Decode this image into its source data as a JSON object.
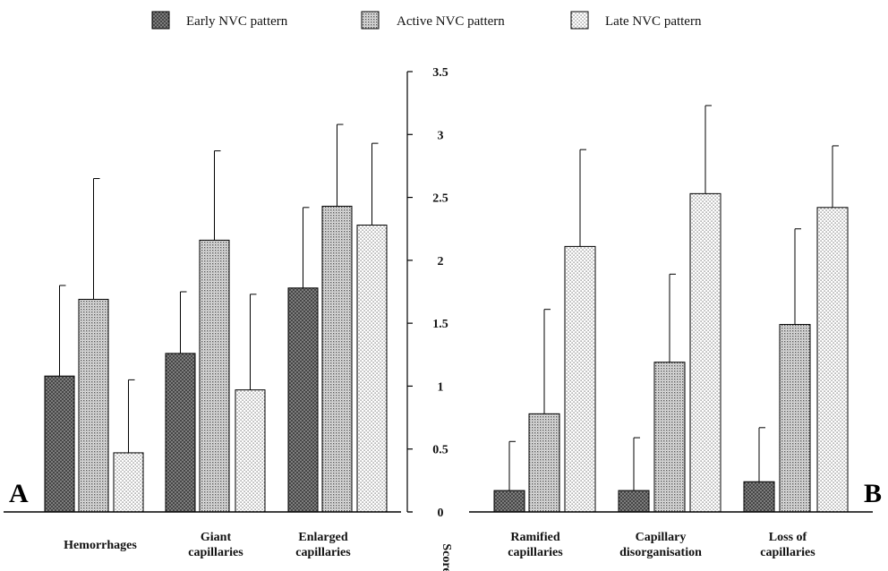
{
  "chart_data": {
    "type": "bar",
    "ylabel": "Score",
    "ylim": [
      0,
      3.5
    ],
    "y_ticks": [
      "0",
      "0.5",
      "1",
      "1.5",
      "2",
      "2.5",
      "3",
      "3.5"
    ],
    "legend": {
      "placement": "top",
      "entries": [
        {
          "name": "Early NVC pattern",
          "pattern": "crosshatch"
        },
        {
          "name": "Active NVC pattern",
          "pattern": "fine-dots"
        },
        {
          "name": "Late NVC pattern",
          "pattern": "sparse-dots"
        }
      ]
    },
    "panels": [
      {
        "label": "A",
        "categories": [
          [
            "Hemorrhages"
          ],
          [
            "Giant",
            "capillaries"
          ],
          [
            "Enlarged",
            "capillaries"
          ]
        ],
        "series": [
          {
            "name": "Early NVC pattern",
            "values": [
              1.08,
              1.26,
              1.78
            ],
            "errors": [
              0.72,
              0.49,
              0.64
            ]
          },
          {
            "name": "Active NVC pattern",
            "values": [
              1.69,
              2.16,
              2.43
            ],
            "errors": [
              0.96,
              0.71,
              0.65
            ]
          },
          {
            "name": "Late NVC pattern",
            "values": [
              0.47,
              0.97,
              2.28
            ],
            "errors": [
              0.58,
              0.76,
              0.65
            ]
          }
        ]
      },
      {
        "label": "B",
        "categories": [
          [
            "Ramified",
            "capillaries"
          ],
          [
            "Capillary",
            "disorganisation"
          ],
          [
            "Loss of",
            "capillaries"
          ]
        ],
        "series": [
          {
            "name": "Early NVC pattern",
            "values": [
              0.17,
              0.17,
              0.24
            ],
            "errors": [
              0.39,
              0.42,
              0.43
            ]
          },
          {
            "name": "Active NVC pattern",
            "values": [
              0.78,
              1.19,
              1.49
            ],
            "errors": [
              0.83,
              0.7,
              0.76
            ]
          },
          {
            "name": "Late NVC pattern",
            "values": [
              2.11,
              2.53,
              2.42
            ],
            "errors": [
              0.77,
              0.7,
              0.49
            ]
          }
        ]
      }
    ]
  }
}
